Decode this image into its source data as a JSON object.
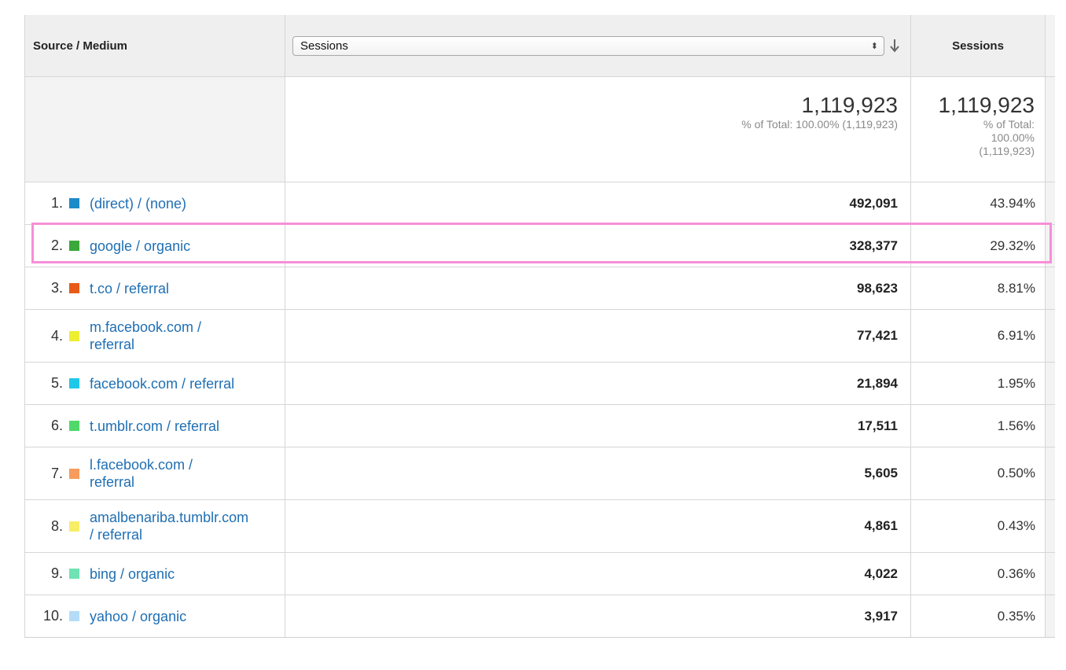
{
  "header": {
    "dimension_label": "Source / Medium",
    "metric_select_value": "Sessions",
    "metric_column_label": "Sessions"
  },
  "totals": {
    "bar_value": "1,119,923",
    "bar_sub": "% of Total: 100.00% (1,119,923)",
    "value": "1,119,923",
    "sub_line1": "% of Total:",
    "sub_line2": "100.00%",
    "sub_line3": "(1,119,923)"
  },
  "rows": [
    {
      "rank": "1.",
      "source": "(direct) / (none)",
      "sessions": "492,091",
      "percent": "43.94%",
      "color": "#1b8bc9"
    },
    {
      "rank": "2.",
      "source": "google / organic",
      "sessions": "328,377",
      "percent": "29.32%",
      "color": "#3aa83a"
    },
    {
      "rank": "3.",
      "source": "t.co / referral",
      "sessions": "98,623",
      "percent": "8.81%",
      "color": "#e85a18"
    },
    {
      "rank": "4.",
      "source_line1": "m.facebook.com /",
      "source_line2": "referral",
      "sessions": "77,421",
      "percent": "6.91%",
      "color": "#eeee33"
    },
    {
      "rank": "5.",
      "source": "facebook.com / referral",
      "sessions": "21,894",
      "percent": "1.95%",
      "color": "#1fc7e8"
    },
    {
      "rank": "6.",
      "source": "t.umblr.com / referral",
      "sessions": "17,511",
      "percent": "1.56%",
      "color": "#4ed96a"
    },
    {
      "rank": "7.",
      "source_line1": "l.facebook.com /",
      "source_line2": "referral",
      "sessions": "5,605",
      "percent": "0.50%",
      "color": "#f79c5c"
    },
    {
      "rank": "8.",
      "source_line1": "amalbenariba.tumblr.com",
      "source_line2": "/ referral",
      "sessions": "4,861",
      "percent": "0.43%",
      "color": "#f7ee66"
    },
    {
      "rank": "9.",
      "source": "bing / organic",
      "sessions": "4,022",
      "percent": "0.36%",
      "color": "#6fe3b4"
    },
    {
      "rank": "10.",
      "source": "yahoo / organic",
      "sessions": "3,917",
      "percent": "0.35%",
      "color": "#b5dcf7"
    }
  ],
  "highlighted_row_rank": "2.",
  "highlight_color": "#f78fd8",
  "icons": {
    "sort": "sort-descending-icon",
    "select": "select-arrows-icon"
  }
}
